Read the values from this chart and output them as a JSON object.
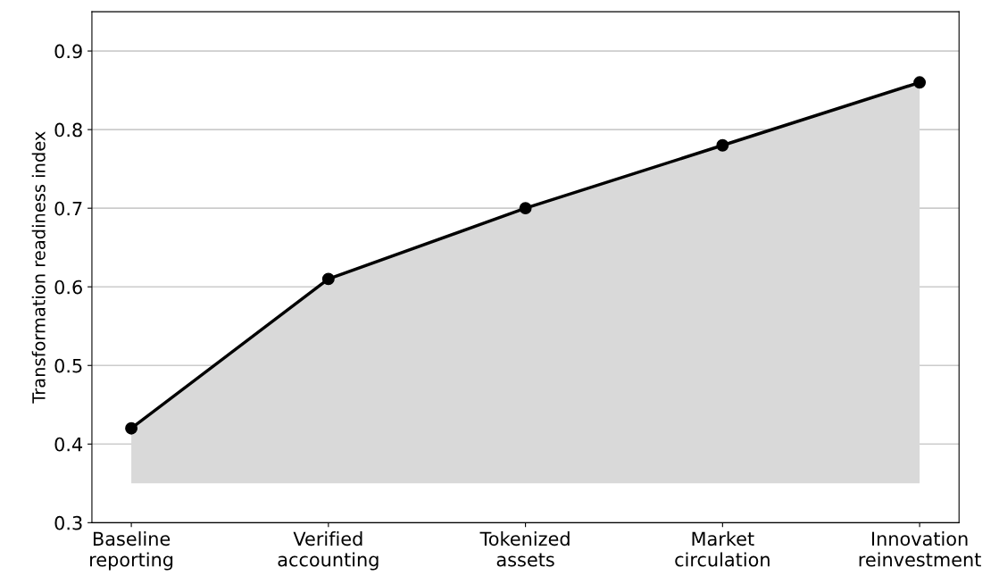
{
  "chart_data": {
    "type": "line",
    "ylabel": "Transformation readiness index",
    "categories": [
      "Baseline\nreporting",
      "Verified\naccounting",
      "Tokenized\nassets",
      "Market\ncirculation",
      "Innovation\nreinvestment"
    ],
    "series": [
      {
        "color": "#000000",
        "values": [
          0.42,
          0.61,
          0.7,
          0.78,
          0.86
        ],
        "lower": [
          0.35,
          0.35,
          0.35,
          0.35,
          0.35
        ],
        "upper": [
          0.42,
          0.61,
          0.7,
          0.78,
          0.86
        ]
      }
    ],
    "ylim": [
      0.3,
      0.95
    ],
    "yticks": [
      0.3,
      0.4,
      0.5,
      0.6,
      0.7,
      0.8,
      0.9
    ],
    "grid": "y",
    "marker": "circle",
    "line_style": "solid",
    "legend": false
  }
}
